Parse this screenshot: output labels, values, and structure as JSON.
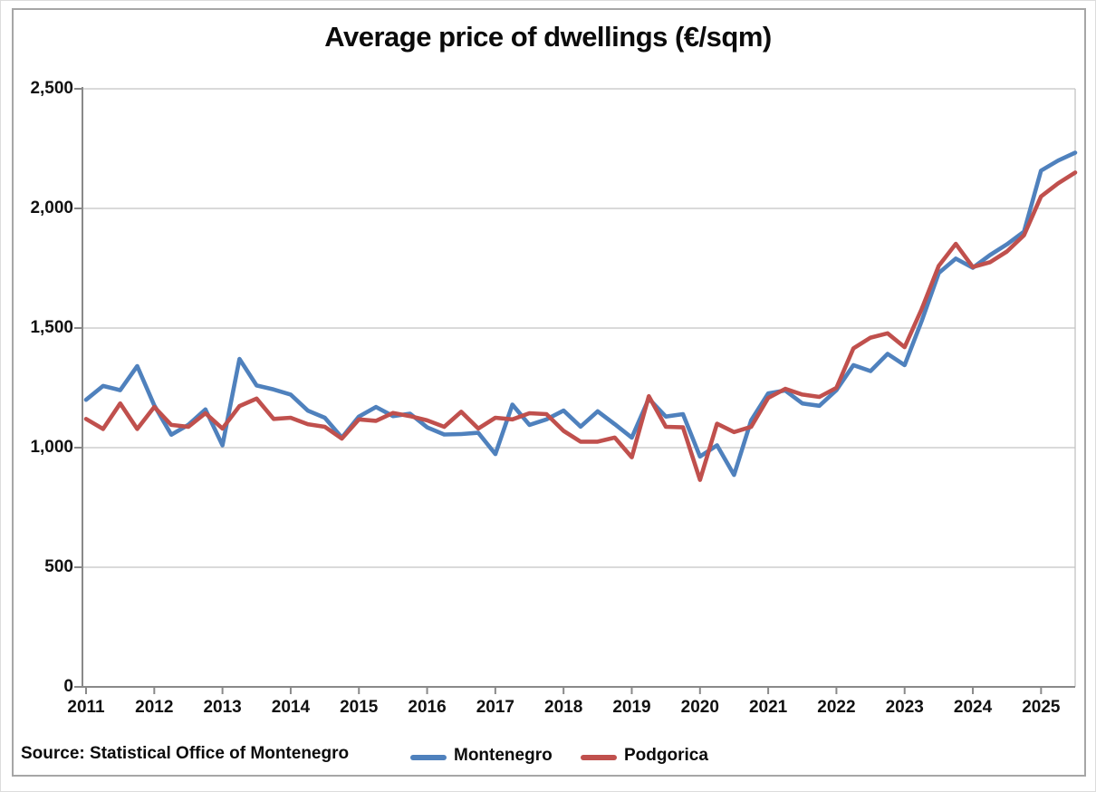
{
  "window": {
    "background_color": "#ffffff",
    "outer_border_color": "#dcdcdc",
    "frame_border_color": "#a6a6a6"
  },
  "source_note": "Source: Statistical Office of Montenegro",
  "chart_data": {
    "type": "line",
    "title": "Average price of dwellings (€/sqm)",
    "xlabel": "",
    "ylabel": "",
    "frequency": "quarterly",
    "x_start": "2011-Q1",
    "x_end": "2025-Q3",
    "grid": "horizontal",
    "legend_position": "bottom",
    "x_axis": {
      "tick_labels": [
        "2011",
        "2012",
        "2013",
        "2014",
        "2015",
        "2016",
        "2017",
        "2018",
        "2019",
        "2020",
        "2021",
        "2022",
        "2023",
        "2024",
        "2025"
      ],
      "ticks_every_n_points": 4
    },
    "y_axis": {
      "min": 0,
      "max": 2500,
      "tick_values": [
        0,
        500,
        1000,
        1500,
        2000,
        2500
      ],
      "tick_labels": [
        "0",
        "500",
        "1,000",
        "1,500",
        "2,000",
        "2,500"
      ],
      "gridline_color": "#c3c3c3",
      "axis_color": "#898989"
    },
    "series": [
      {
        "name": "Montenegro",
        "color": "#4F81BD",
        "values": [
          1200,
          1258,
          1240,
          1341,
          1177,
          1054,
          1096,
          1160,
          1010,
          1371,
          1260,
          1243,
          1222,
          1155,
          1125,
          1042,
          1130,
          1170,
          1132,
          1142,
          1085,
          1055,
          1057,
          1062,
          973,
          1180,
          1095,
          1118,
          1155,
          1088,
          1152,
          1098,
          1042,
          1205,
          1130,
          1140,
          963,
          1010,
          886,
          1114,
          1227,
          1239,
          1185,
          1175,
          1240,
          1345,
          1320,
          1392,
          1345,
          1530,
          1730,
          1790,
          1752,
          1805,
          1850,
          1903,
          2158,
          2200,
          2233
        ]
      },
      {
        "name": "Podgorica",
        "color": "#C0504D",
        "values": [
          1120,
          1078,
          1185,
          1078,
          1170,
          1095,
          1087,
          1144,
          1080,
          1174,
          1205,
          1120,
          1125,
          1098,
          1087,
          1038,
          1118,
          1112,
          1145,
          1132,
          1114,
          1087,
          1150,
          1080,
          1125,
          1118,
          1144,
          1140,
          1070,
          1025,
          1025,
          1042,
          960,
          1215,
          1087,
          1085,
          865,
          1100,
          1065,
          1087,
          1208,
          1246,
          1222,
          1212,
          1250,
          1415,
          1460,
          1478,
          1420,
          1580,
          1760,
          1852,
          1755,
          1775,
          1820,
          1888,
          2050,
          2105,
          2150
        ]
      }
    ]
  }
}
